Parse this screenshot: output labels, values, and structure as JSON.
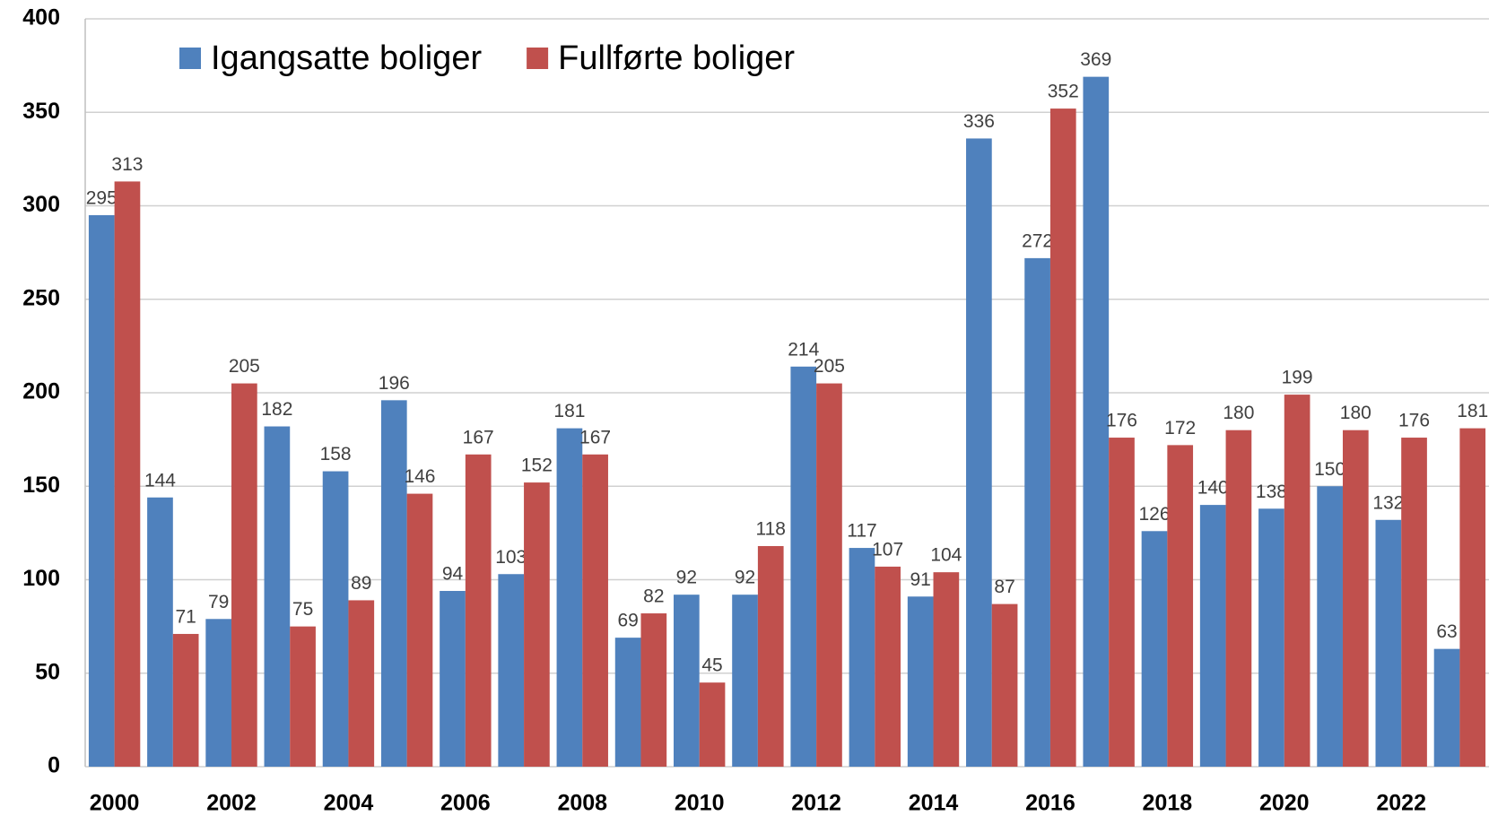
{
  "chart_data": {
    "type": "bar",
    "categories": [
      "2000",
      null,
      "2002",
      null,
      "2004",
      null,
      "2006",
      null,
      "2008",
      null,
      "2010",
      null,
      "2012",
      null,
      "2014",
      null,
      "2016",
      null,
      "2018",
      null,
      "2020",
      null,
      "2022",
      null
    ],
    "series": [
      {
        "name": "Igangsatte boliger",
        "color": "#4f81bd",
        "values": [
          295,
          144,
          79,
          182,
          158,
          196,
          94,
          103,
          181,
          69,
          92,
          92,
          214,
          117,
          91,
          336,
          272,
          369,
          126,
          140,
          138,
          150,
          132,
          63
        ]
      },
      {
        "name": "Fullførte boliger",
        "color": "#c0504d",
        "values": [
          313,
          71,
          205,
          75,
          89,
          146,
          167,
          152,
          167,
          82,
          45,
          118,
          205,
          107,
          104,
          87,
          352,
          176,
          172,
          180,
          199,
          180,
          176,
          181
        ]
      }
    ],
    "ylim": [
      0,
      400
    ],
    "yticks": [
      0,
      50,
      100,
      150,
      200,
      250,
      300,
      350,
      400
    ],
    "grid": true,
    "legend": "top-left"
  }
}
